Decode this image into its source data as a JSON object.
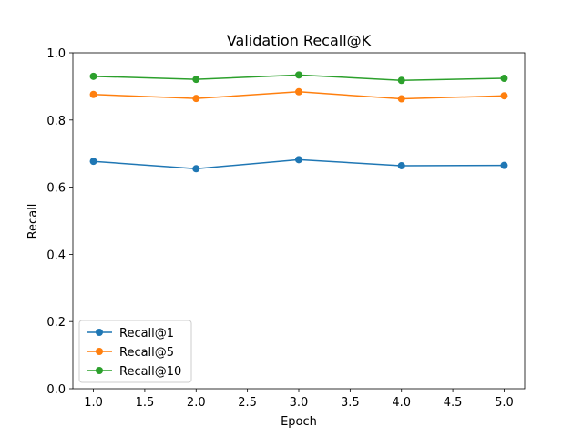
{
  "chart_data": {
    "type": "line",
    "title": "Validation Recall@K",
    "xlabel": "Epoch",
    "ylabel": "Recall",
    "x": [
      1.0,
      2.0,
      3.0,
      4.0,
      5.0
    ],
    "xlim": [
      0.8,
      5.2
    ],
    "ylim": [
      0.0,
      1.0
    ],
    "xticks": [
      "1.0",
      "1.5",
      "2.0",
      "2.5",
      "3.0",
      "3.5",
      "4.0",
      "4.5",
      "5.0"
    ],
    "yticks": [
      "0.0",
      "0.2",
      "0.4",
      "0.6",
      "0.8",
      "1.0"
    ],
    "grid": false,
    "legend_position": "lower-left",
    "series": [
      {
        "name": "Recall@1",
        "color": "#1f77b4",
        "values": [
          0.677,
          0.655,
          0.682,
          0.664,
          0.665
        ]
      },
      {
        "name": "Recall@5",
        "color": "#ff7f0e",
        "values": [
          0.876,
          0.864,
          0.884,
          0.863,
          0.872
        ]
      },
      {
        "name": "Recall@10",
        "color": "#2ca02c",
        "values": [
          0.93,
          0.921,
          0.934,
          0.918,
          0.924
        ]
      }
    ]
  }
}
